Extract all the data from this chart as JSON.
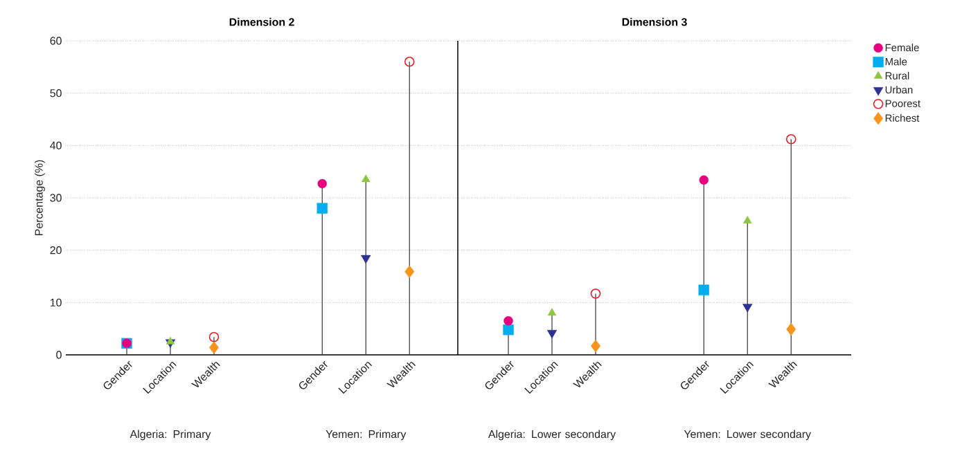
{
  "chart_data": [
    {
      "type": "lollipop",
      "title": "Dimension 2",
      "ylabel": "Percentage (%)",
      "categories": [
        "Gender",
        "Location",
        "Wealth",
        "Gender",
        "Location",
        "Wealth"
      ],
      "annotations": [
        "Algeria: Primary",
        "Yemen: Primary"
      ],
      "series": [
        {
          "color": "#e6007e",
          "marker": "circle",
          "values": [
            2.2,
            null,
            null,
            32.7,
            null,
            null
          ]
        },
        {
          "color": "#00aeef",
          "marker": "square",
          "values": [
            2.2,
            null,
            null,
            28.0,
            null,
            null
          ]
        },
        {
          "color": "#8dc63f",
          "marker": "triangle",
          "values": [
            null,
            2.5,
            null,
            null,
            33.5,
            null
          ]
        },
        {
          "color": "#2e3192",
          "marker": "triangle down",
          "values": [
            null,
            2.4,
            null,
            null,
            18.5,
            null
          ]
        },
        {
          "color": "#ed1c24",
          "marker": "open circle",
          "values": [
            null,
            null,
            3.4,
            null,
            null,
            56.0
          ]
        },
        {
          "color": "#f7941d",
          "marker": "diamond",
          "values": [
            null,
            null,
            1.4,
            null,
            null,
            15.9
          ]
        }
      ],
      "ylim": [
        0,
        60
      ],
      "yticks": [
        0,
        10,
        20,
        30,
        40,
        50,
        60
      ],
      "grid": "y",
      "legend": false
    },
    {
      "type": "lollipop",
      "title": "Dimension 3",
      "categories": [
        "Gender",
        "Location",
        "Wealth",
        "Gender",
        "Location",
        "Wealth"
      ],
      "annotations": [
        "Algeria: Lower secondary",
        "Yemen: Lower secondary"
      ],
      "series": [
        {
          "name": "Female",
          "color": "#e6007e",
          "marker": "circle",
          "values": [
            6.5,
            null,
            null,
            33.4,
            null,
            null
          ]
        },
        {
          "name": "Male",
          "color": "#00aeef",
          "marker": "square",
          "values": [
            4.8,
            null,
            null,
            12.4,
            null,
            null
          ]
        },
        {
          "name": "Rural",
          "color": "#8dc63f",
          "marker": "triangle",
          "values": [
            null,
            8.0,
            null,
            null,
            25.6,
            null
          ]
        },
        {
          "name": "Urban",
          "color": "#2e3192",
          "marker": "triangle down",
          "values": [
            null,
            4.2,
            null,
            null,
            9.2,
            null
          ]
        },
        {
          "name": "Poorest",
          "color": "#ed1c24",
          "marker": "open circle",
          "values": [
            null,
            null,
            11.7,
            null,
            null,
            41.2
          ]
        },
        {
          "name": "Richest",
          "color": "#f7941d",
          "marker": "diamond",
          "values": [
            null,
            null,
            1.7,
            null,
            null,
            4.9
          ]
        }
      ],
      "ylim": [
        0,
        60
      ],
      "yticks": [
        0,
        10,
        20,
        30,
        40,
        50,
        60
      ],
      "grid": "y",
      "legend": "top right",
      "tick_labels": "x"
    }
  ]
}
